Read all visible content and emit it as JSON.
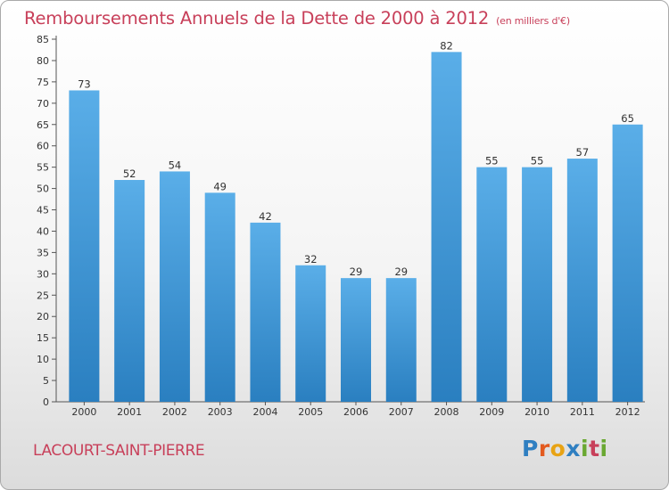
{
  "title": "Remboursements Annuels de la Dette de 2000 à 2012",
  "unit": "(en milliers d'€)",
  "commune": "LACOURT-SAINT-PIERRE",
  "logo": {
    "letters": [
      "P",
      "r",
      "o",
      "x",
      "i",
      "t",
      "i"
    ]
  },
  "colors": {
    "title": "#c8405a",
    "bar_light": "#5aaee8",
    "bar_dark": "#2a7fc0"
  },
  "chart_data": {
    "type": "bar",
    "categories": [
      "2000",
      "2001",
      "2002",
      "2003",
      "2004",
      "2005",
      "2006",
      "2007",
      "2008",
      "2009",
      "2010",
      "2011",
      "2012"
    ],
    "values": [
      73,
      52,
      54,
      49,
      42,
      32,
      29,
      29,
      82,
      55,
      55,
      57,
      65
    ],
    "ylim": [
      0,
      85
    ],
    "yticks": [
      0,
      5,
      10,
      15,
      20,
      25,
      30,
      35,
      40,
      45,
      50,
      55,
      60,
      65,
      70,
      75,
      80,
      85
    ],
    "grid": false,
    "legend": "none"
  }
}
